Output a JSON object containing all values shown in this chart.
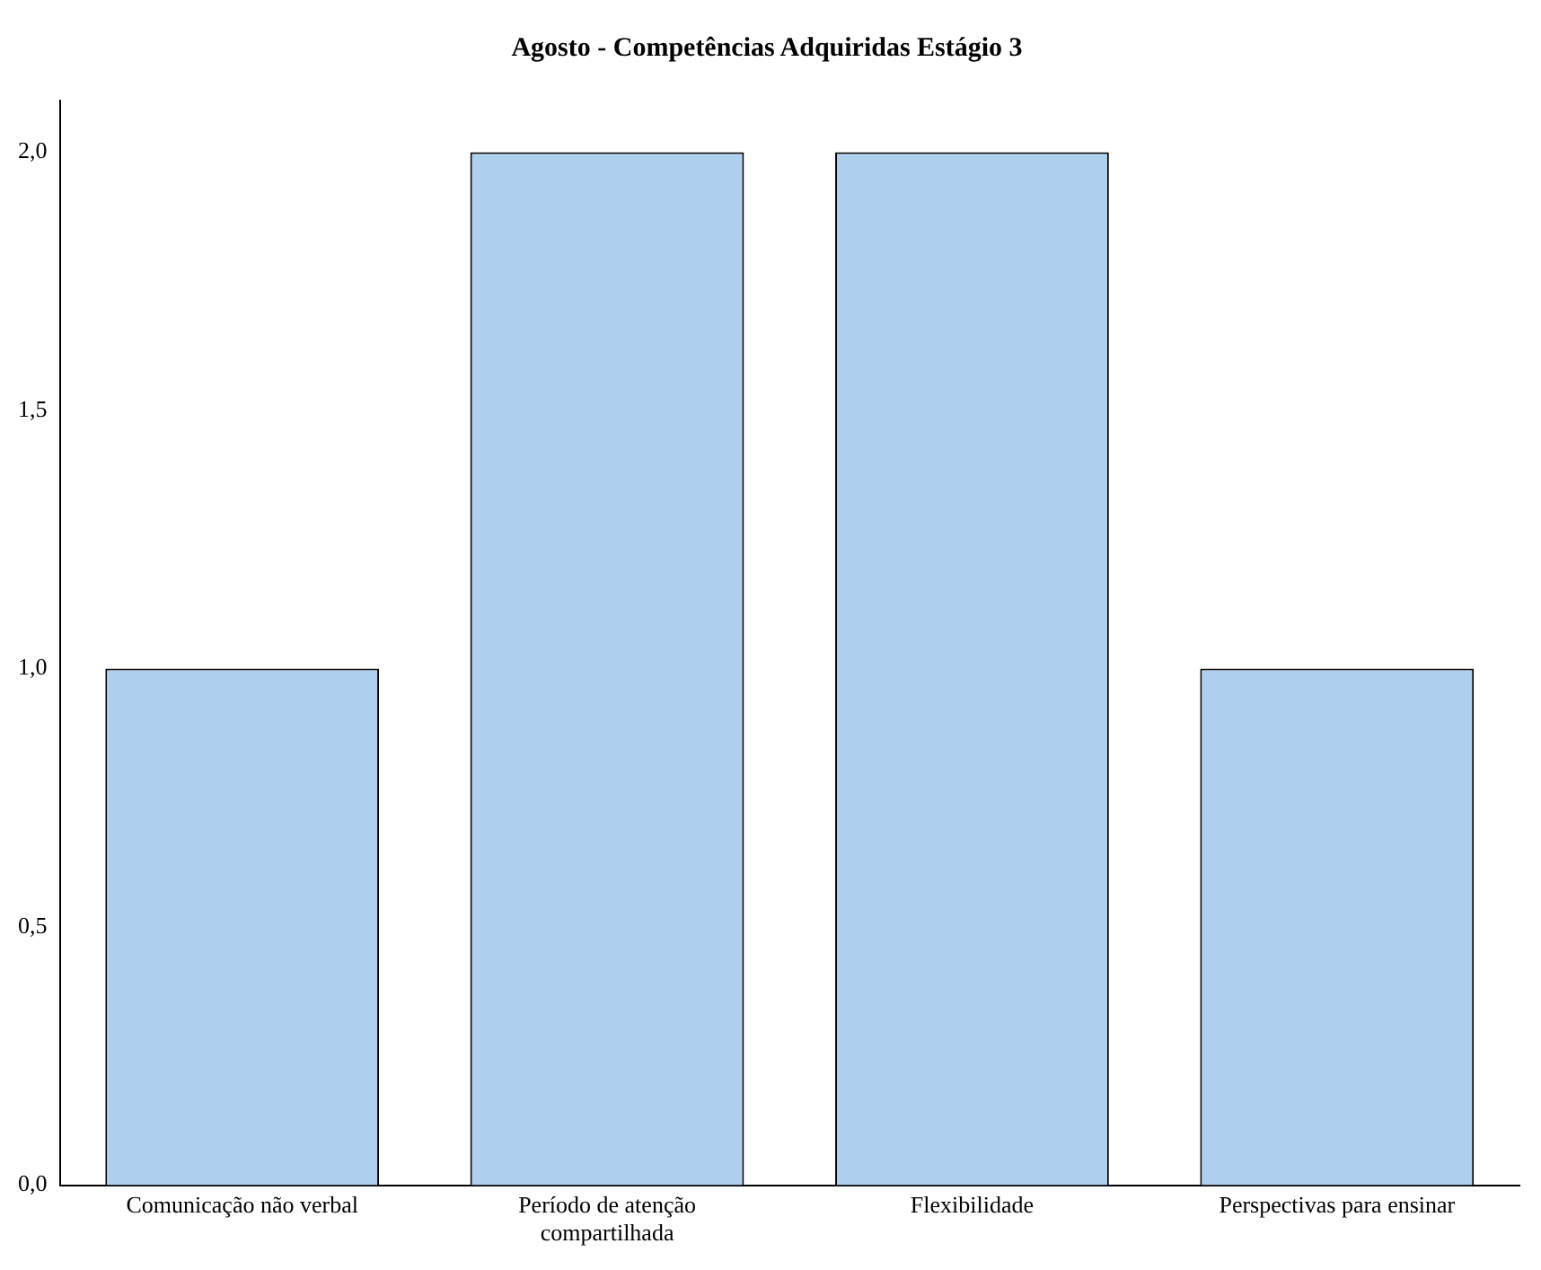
{
  "chart_data": {
    "type": "bar",
    "title": "Agosto - Competências Adquiridas Estágio 3",
    "categories": [
      "Comunicação não verbal",
      "Período de atenção compartilhada",
      "Flexibilidade",
      "Perspectivas para ensinar"
    ],
    "values": [
      1,
      2,
      2,
      1
    ],
    "color": "#aecfee",
    "ylim": [
      0,
      2.1
    ],
    "yticks": [
      {
        "value": 0,
        "label": "0,0"
      },
      {
        "value": 0.5,
        "label": "0,5"
      },
      {
        "value": 1,
        "label": "1,0"
      },
      {
        "value": 1.5,
        "label": "1,5"
      },
      {
        "value": 2,
        "label": "2,0"
      }
    ],
    "grid": false,
    "legend": false
  }
}
